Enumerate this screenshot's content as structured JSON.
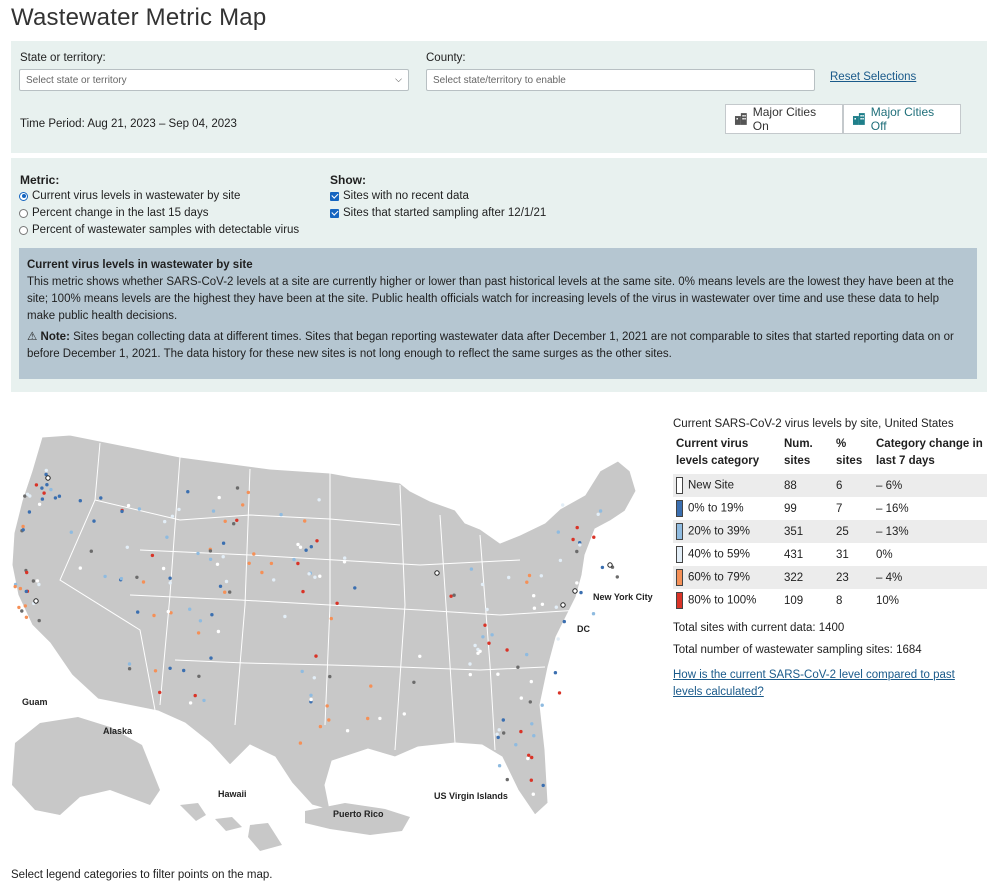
{
  "page": {
    "title": "Wastewater Metric Map"
  },
  "filters": {
    "state_label": "State or territory:",
    "state_placeholder": "Select state or territory",
    "county_label": "County:",
    "county_placeholder": "Select state/territory to enable",
    "reset_label": "Reset Selections",
    "time_period": "Time Period: Aug 21, 2023 – Sep 04, 2023",
    "cities_on_label": "Major Cities On",
    "cities_off_label": "Major Cities Off"
  },
  "metric": {
    "heading": "Metric:",
    "options": [
      {
        "label": "Current virus levels in wastewater by site",
        "selected": true
      },
      {
        "label": "Percent change in the last 15 days",
        "selected": false
      },
      {
        "label": "Percent of wastewater samples with detectable virus",
        "selected": false
      }
    ]
  },
  "show": {
    "heading": "Show:",
    "options": [
      {
        "label": "Sites with no recent data",
        "checked": true
      },
      {
        "label": "Sites that started sampling after 12/1/21",
        "checked": true
      }
    ]
  },
  "description": {
    "title": "Current virus levels in wastewater by site",
    "body": "This metric shows whether SARS-CoV-2 levels at a site are currently higher or lower than past historical levels at the same site. 0% means levels are the lowest they have been at the site; 100% means levels are the highest they have been at the site. Public health officials watch for increasing levels of the virus in wastewater over time and use these data to help make public health decisions.",
    "note_label": "Note:",
    "note_text": " Sites began collecting data at different times. Sites that began reporting wastewater data after December 1, 2021 are not comparable to sites that started reporting data on or before December 1, 2021. The data history for these new sites is not long enough to reflect the same surges as the other sites."
  },
  "legend": {
    "title": "Current SARS-CoV-2 virus levels by site, United States",
    "headers": [
      "Current virus levels category",
      "Num. sites",
      "% sites",
      "Category change in last 7 days"
    ],
    "rows": [
      {
        "category": "New Site",
        "num": "88",
        "pct": "6",
        "change": "– 6%",
        "color": "#ffffff"
      },
      {
        "category": "0% to 19%",
        "num": "99",
        "pct": "7",
        "change": "– 16%",
        "color": "#3b6fb0"
      },
      {
        "category": "20% to 39%",
        "num": "351",
        "pct": "25",
        "change": "– 13%",
        "color": "#8fbbe0"
      },
      {
        "category": "40% to 59%",
        "num": "431",
        "pct": "31",
        "change": "0%",
        "color": "#e3eef7"
      },
      {
        "category": "60% to 79%",
        "num": "322",
        "pct": "23",
        "change": "– 4%",
        "color": "#f59057"
      },
      {
        "category": "80% to 100%",
        "num": "109",
        "pct": "8",
        "change": "10%",
        "color": "#d93327"
      }
    ],
    "total_current": "Total sites with current data: 1400",
    "total_all": "Total number of wastewater sampling sites: 1684",
    "calc_link": "How is the current SARS-CoV-2 level compared to past levels calculated?"
  },
  "map": {
    "labels": {
      "new_york": "New York City",
      "dc": "DC",
      "guam": "Guam",
      "alaska": "Alaska",
      "hawaii": "Hawaii",
      "puerto_rico": "Puerto Rico",
      "usvi": "US Virgin Islands"
    },
    "note": "Select legend categories to filter points on the map.",
    "no_data_color": "#6b6b6b"
  }
}
